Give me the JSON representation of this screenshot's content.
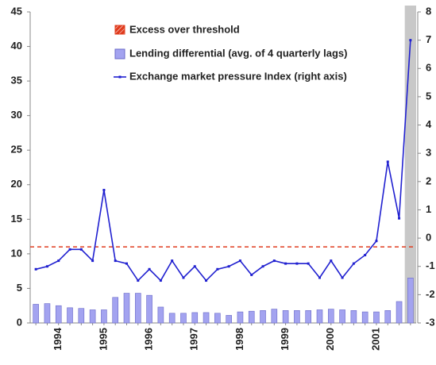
{
  "chart_data": {
    "type": "bar-line",
    "categories": [
      null,
      null,
      "1994",
      null,
      null,
      null,
      "1995",
      null,
      null,
      null,
      "1996",
      null,
      null,
      null,
      "1997",
      null,
      null,
      null,
      "1998",
      null,
      null,
      null,
      "1999",
      null,
      null,
      null,
      "2000",
      null,
      null,
      null,
      "2001",
      null,
      null,
      null
    ],
    "series": [
      {
        "name": "Lending differential (avg. of 4 quarterly lags)",
        "type": "bar",
        "color": "#a3a3f0",
        "axis": "y",
        "values": [
          2.7,
          2.8,
          2.5,
          2.2,
          2.1,
          1.9,
          1.9,
          3.7,
          4.3,
          4.3,
          4.0,
          2.3,
          1.4,
          1.4,
          1.5,
          1.5,
          1.4,
          1.1,
          1.6,
          1.7,
          1.8,
          2.0,
          1.8,
          1.8,
          1.8,
          1.9,
          2.0,
          1.9,
          1.8,
          1.6,
          1.6,
          1.8,
          3.1,
          6.5
        ]
      },
      {
        "name": "Exchange market pressure Index (right axis)",
        "type": "line",
        "color": "#2020d0",
        "axis": "y2",
        "values": [
          -1.1,
          -1.0,
          -0.8,
          -0.4,
          -0.4,
          -0.8,
          1.7,
          -0.8,
          -0.9,
          -1.5,
          -1.1,
          -1.5,
          -0.8,
          -1.4,
          -1.0,
          -1.5,
          -1.1,
          -1.0,
          -0.8,
          -1.3,
          -1.0,
          -0.8,
          -0.9,
          -0.9,
          -0.9,
          -1.4,
          -0.8,
          -1.4,
          -0.9,
          -0.6,
          -0.1,
          2.7,
          0.7,
          7.0
        ]
      }
    ],
    "threshold": {
      "name": "Excess over threshold",
      "color": "#e03c1e",
      "value": 11
    },
    "ylim": [
      0,
      45
    ],
    "yticks": [
      0,
      5,
      10,
      15,
      20,
      25,
      30,
      35,
      40,
      45
    ],
    "y2lim": [
      -3,
      8
    ],
    "y2ticks": [
      -3,
      -2,
      -1,
      0,
      1,
      2,
      3,
      4,
      5,
      6,
      7,
      8
    ]
  }
}
